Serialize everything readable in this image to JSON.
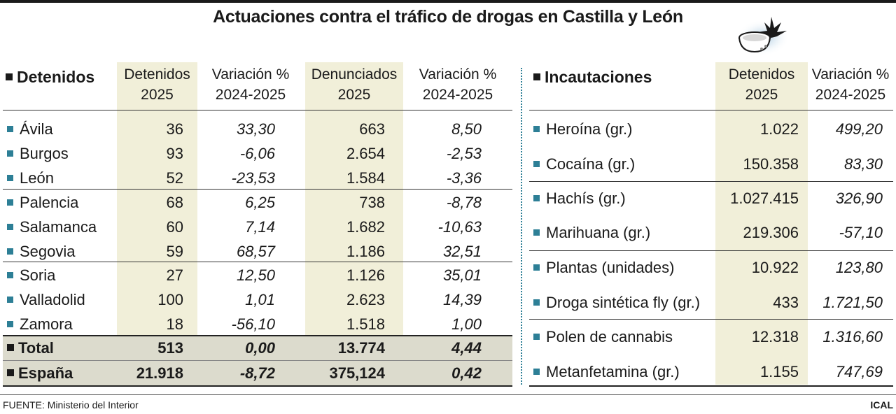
{
  "title": "Actuaciones contra el tráfico de drogas en Castilla y León",
  "chart_data": [
    {
      "type": "table",
      "section_label": "Detenidos",
      "columns": [
        {
          "line1": "Detenidos",
          "line2": "2025"
        },
        {
          "line1": "Variación %",
          "line2": "2024-2025"
        },
        {
          "line1": "Denunciados",
          "line2": "2025"
        },
        {
          "line1": "Variación %",
          "line2": "2024-2025"
        }
      ],
      "rows": [
        {
          "name": "Ávila",
          "values": [
            "36",
            "33,30",
            "663",
            "8,50"
          ]
        },
        {
          "name": "Burgos",
          "values": [
            "93",
            "-6,06",
            "2.654",
            "-2,53"
          ]
        },
        {
          "name": "León",
          "values": [
            "52",
            "-23,53",
            "1.584",
            "-3,36"
          ]
        },
        {
          "name": "Palencia",
          "values": [
            "68",
            "6,25",
            "738",
            "-8,78"
          ]
        },
        {
          "name": "Salamanca",
          "values": [
            "60",
            "7,14",
            "1.682",
            "-10,63"
          ]
        },
        {
          "name": "Segovia",
          "values": [
            "59",
            "68,57",
            "1.186",
            "32,51"
          ]
        },
        {
          "name": "Soria",
          "values": [
            "27",
            "12,50",
            "1.126",
            "35,01"
          ]
        },
        {
          "name": "Valladolid",
          "values": [
            "100",
            "1,01",
            "2.623",
            "14,39"
          ]
        },
        {
          "name": "Zamora",
          "values": [
            "18",
            "-56,10",
            "1.518",
            "1,00"
          ]
        }
      ],
      "summary_rows": [
        {
          "name": "Total",
          "values": [
            "513",
            "0,00",
            "13.774",
            "4,44"
          ]
        },
        {
          "name": "España",
          "values": [
            "21.918",
            "-8,72",
            "375,124",
            "0,42"
          ]
        }
      ]
    },
    {
      "type": "table",
      "section_label": "Incautaciones",
      "columns": [
        {
          "line1": "Detenidos",
          "line2": "2025"
        },
        {
          "line1": "Variación %",
          "line2": "2024-2025"
        }
      ],
      "rows": [
        {
          "name": "Heroína (gr.)",
          "values": [
            "1.022",
            "499,20"
          ]
        },
        {
          "name": "Cocaína (gr.)",
          "values": [
            "150.358",
            "83,30"
          ]
        },
        {
          "name": "Hachís (gr.)",
          "values": [
            "1.027.415",
            "326,90"
          ]
        },
        {
          "name": "Marihuana (gr.)",
          "values": [
            "219.306",
            "-57,10"
          ]
        },
        {
          "name": "Plantas (unidades)",
          "values": [
            "10.922",
            "123,80"
          ]
        },
        {
          "name": "Droga sintética fly (gr.)",
          "values": [
            "433",
            "1.721,50"
          ]
        },
        {
          "name": "Polen de cannabis",
          "values": [
            "12.318",
            "1.316,60"
          ]
        },
        {
          "name": "Metanfetamina (gr.)",
          "values": [
            "1.155",
            "747,69"
          ]
        }
      ]
    }
  ],
  "footer": {
    "source": "FUENTE: Ministerio del Interior",
    "credit": "ICAL"
  },
  "colors": {
    "shade": "#f1efd9",
    "summary": "#dcdbcd",
    "bullet": "#2d7f96",
    "text": "#1a1a1a"
  }
}
